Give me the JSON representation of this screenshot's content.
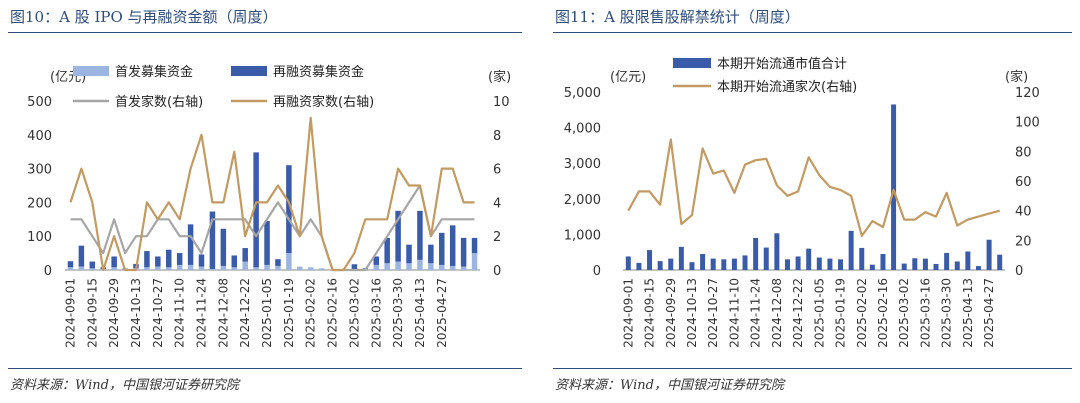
{
  "left": {
    "title": "图10：A 股 IPO 与再融资金额（周度）",
    "source": "资料来源：Wind，中国银河证券研究院"
  },
  "right": {
    "title": "图11：A 股限售股解禁统计（周度）",
    "source": "资料来源：Wind，中国银河证券研究院"
  },
  "colors": {
    "ipo_bar": "#9bb5e0",
    "refi_bar": "#3a5ca8",
    "ipo_line": "#a6a6a6",
    "refi_line": "#c39a62",
    "unlock_bar": "#3a5ca8",
    "unlock_line": "#c39a62",
    "frame": "#2e4d7b"
  },
  "chart_data": [
    {
      "type": "bar",
      "ylabel": "(亿元)",
      "y2label": "(家)",
      "ylim": [
        0,
        500
      ],
      "yticks": [
        "0",
        "100",
        "200",
        "300",
        "400",
        "500"
      ],
      "y2lim": [
        0,
        10
      ],
      "y2ticks": [
        "0",
        "2",
        "4",
        "6",
        "8",
        "10"
      ],
      "x_tick_labels": [
        "2024-09-01",
        "2024-09-15",
        "2024-09-29",
        "2024-10-13",
        "2024-10-27",
        "2024-11-10",
        "2024-11-24",
        "2024-12-08",
        "2024-12-22",
        "2025-01-05",
        "2025-01-19",
        "2025-02-02",
        "2025-02-16",
        "2025-03-02",
        "2025-03-16",
        "2025-03-30",
        "2025-04-13",
        "2025-04-27"
      ],
      "legend": "top",
      "series": [
        {
          "name": "首发募集资金",
          "kind": "bar",
          "axis": "left",
          "values": [
            8,
            10,
            5,
            3,
            8,
            2,
            6,
            8,
            10,
            8,
            15,
            15,
            10,
            3,
            12,
            8,
            25,
            8,
            15,
            12,
            50,
            10,
            8,
            5,
            0,
            0,
            2,
            2,
            15,
            20,
            25,
            20,
            30,
            20,
            15,
            12,
            10,
            50
          ]
        },
        {
          "name": "再融资募集资金",
          "kind": "bar",
          "axis": "left",
          "values": [
            18,
            62,
            20,
            5,
            32,
            2,
            12,
            48,
            30,
            52,
            35,
            120,
            36,
            170,
            110,
            35,
            40,
            340,
            130,
            20,
            260,
            0,
            0,
            0,
            0,
            0,
            15,
            3,
            25,
            75,
            150,
            55,
            145,
            55,
            95,
            120,
            85,
            45
          ]
        },
        {
          "name": "首发家数(右轴)",
          "kind": "line",
          "axis": "right",
          "values": [
            3,
            3,
            2,
            1,
            3,
            1,
            2,
            2,
            3,
            3,
            2,
            2,
            1,
            3,
            3,
            3,
            3,
            2,
            3,
            4,
            3,
            2,
            3,
            2,
            0,
            0,
            0,
            0,
            1,
            2,
            3,
            4,
            5,
            2,
            3,
            3,
            3,
            3
          ]
        },
        {
          "name": "再融资家数(右轴)",
          "kind": "line",
          "axis": "right",
          "values": [
            4,
            6,
            4,
            0,
            2,
            0,
            0,
            4,
            3,
            4,
            3,
            6,
            8,
            4,
            4,
            7,
            2,
            4,
            4,
            5,
            4,
            2,
            9,
            2,
            0,
            0,
            1,
            3,
            3,
            3,
            6,
            5,
            5,
            2,
            6,
            6,
            4,
            4
          ]
        }
      ]
    },
    {
      "type": "bar",
      "ylabel": "(亿元)",
      "y2label": "(家)",
      "ylim": [
        0,
        5000
      ],
      "yticks": [
        "0",
        "1,000",
        "2,000",
        "3,000",
        "4,000",
        "5,000"
      ],
      "y2lim": [
        0,
        120
      ],
      "y2ticks": [
        "0",
        "20",
        "40",
        "60",
        "80",
        "100",
        "120"
      ],
      "x_tick_labels": [
        "2024-09-01",
        "2024-09-15",
        "2024-09-29",
        "2024-10-13",
        "2024-10-27",
        "2024-11-10",
        "2024-11-24",
        "2024-12-08",
        "2024-12-22",
        "2025-01-05",
        "2025-01-19",
        "2025-02-02",
        "2025-02-16",
        "2025-03-02",
        "2025-03-16",
        "2025-03-30",
        "2025-04-13",
        "2025-04-27"
      ],
      "legend": "top",
      "series": [
        {
          "name": "本期开始流通市值合计",
          "kind": "bar",
          "axis": "left",
          "values": [
            380,
            200,
            560,
            250,
            320,
            650,
            220,
            450,
            320,
            300,
            320,
            410,
            900,
            630,
            1030,
            300,
            380,
            600,
            350,
            320,
            300,
            1100,
            620,
            150,
            450,
            4650,
            180,
            330,
            320,
            170,
            480,
            240,
            520,
            110,
            850,
            430
          ]
        },
        {
          "name": "本期开始流通家次(右轴)",
          "kind": "line",
          "axis": "right",
          "values": [
            40,
            53,
            53,
            44,
            88,
            31,
            37,
            82,
            65,
            67,
            52,
            71,
            74,
            75,
            57,
            50,
            53,
            76,
            64,
            56,
            54,
            50,
            23,
            33,
            29,
            54,
            34,
            34,
            39,
            36,
            52,
            30,
            34,
            36,
            38,
            40
          ]
        }
      ]
    }
  ]
}
